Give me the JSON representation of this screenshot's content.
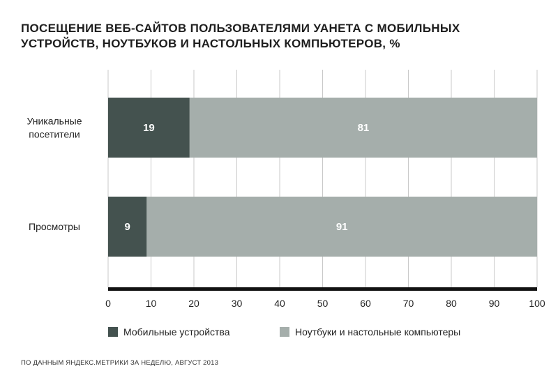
{
  "chart_data": {
    "type": "bar",
    "stacked": true,
    "orientation": "horizontal",
    "title": "ПОСЕЩЕНИЕ ВЕБ-САЙТОВ ПОЛЬЗОВАТЕЛЯМИ УАНЕТА С МОБИЛЬНЫХ УСТРОЙСТВ, НОУТБУКОВ И НАСТОЛЬНЫХ КОМПЬЮТЕРОВ, %",
    "categories": [
      [
        "Уникальные",
        "посетители"
      ],
      [
        "Просмотры"
      ]
    ],
    "series": [
      {
        "name": "Мобильные устройства",
        "values": [
          19,
          9
        ],
        "color": "#44524f"
      },
      {
        "name": "Ноутбуки и настольные компьютеры",
        "values": [
          81,
          91
        ],
        "color": "#a5aeab"
      }
    ],
    "xlim": [
      0,
      100
    ],
    "xticks": [
      0,
      10,
      20,
      30,
      40,
      50,
      60,
      70,
      80,
      90,
      100
    ],
    "grid": true,
    "legend": "bottom"
  },
  "source": "ПО ДАННЫМ ЯНДЕКС.МЕТРИКИ ЗА НЕДЕЛЮ, АВГУСТ 2013"
}
